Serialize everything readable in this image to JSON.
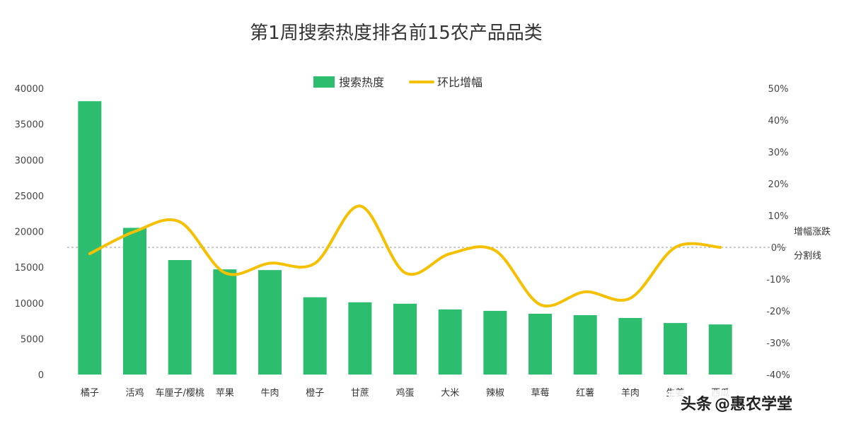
{
  "chart_data": {
    "type": "bar",
    "title": "第1周搜索热度排名前15农产品品类",
    "categories": [
      "橘子",
      "活鸡",
      "车厘子/樱桃",
      "苹果",
      "牛肉",
      "橙子",
      "甘蔗",
      "鸡蛋",
      "大米",
      "辣椒",
      "草莓",
      "红薯",
      "羊肉",
      "生姜",
      "西瓜"
    ],
    "series": [
      {
        "name": "搜索热度",
        "type": "bar",
        "axis": "left",
        "color": "#2dbd6e",
        "values": [
          38200,
          20500,
          16000,
          14700,
          14600,
          10800,
          10100,
          9900,
          9100,
          8900,
          8500,
          8300,
          7900,
          7200,
          7000
        ]
      },
      {
        "name": "环比增幅",
        "type": "line",
        "smooth": true,
        "axis": "right",
        "color": "#f5c000",
        "values": [
          -2,
          5,
          8,
          -8,
          -5,
          -5,
          13,
          -8,
          -2,
          -1,
          -18,
          -14,
          -16,
          0,
          0
        ]
      }
    ],
    "y_left": {
      "min": 0,
      "max": 40000,
      "ticks": [
        "0",
        "5000",
        "10000",
        "15000",
        "20000",
        "25000",
        "30000",
        "35000",
        "40000"
      ]
    },
    "y_right": {
      "min": -40,
      "max": 50,
      "ticks": [
        "-40%",
        "-30%",
        "-20%",
        "-10%",
        "0%",
        "10%",
        "20%",
        "30%",
        "40%",
        "50%"
      ]
    },
    "reference_line": {
      "axis": "right",
      "value": 0,
      "style": "dashed",
      "label": [
        "增幅涨跌",
        "分割线"
      ]
    },
    "legend": {
      "position": "top-center"
    },
    "grid": false
  },
  "watermark": {
    "badge": "头条",
    "text": "@惠农学堂"
  }
}
